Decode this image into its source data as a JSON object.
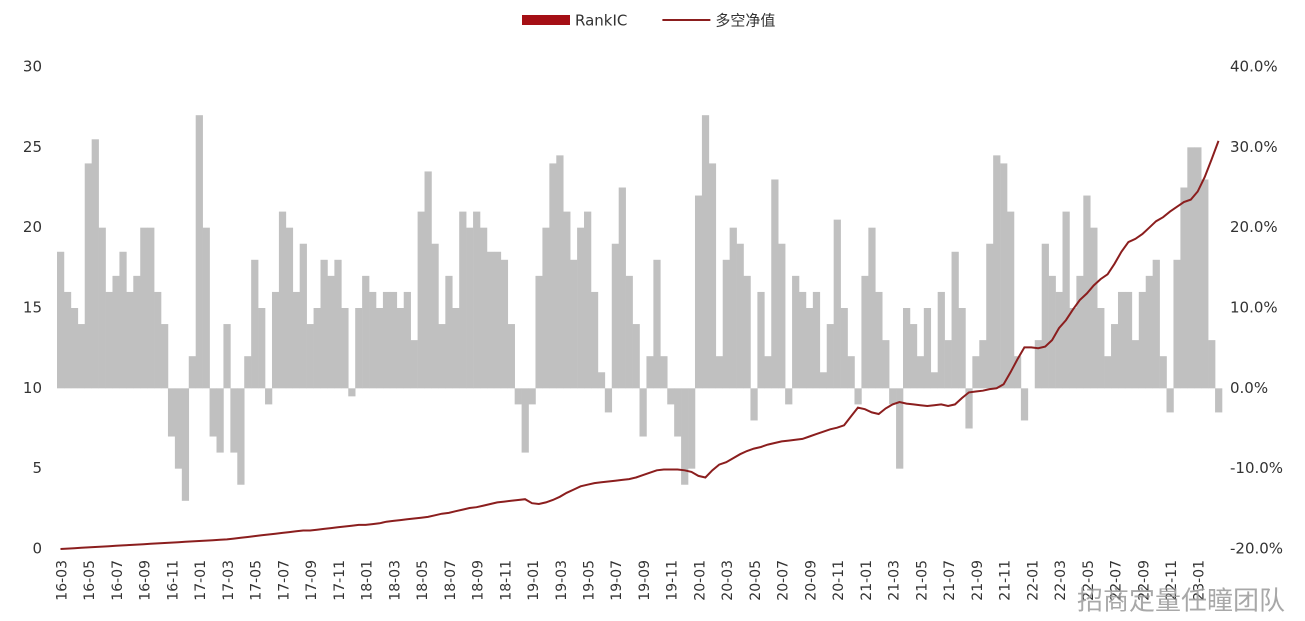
{
  "chart_data": {
    "type": "bar-line",
    "watermark": "招商定量任瞳团队",
    "categories": [
      "16-03",
      null,
      null,
      null,
      "16-05",
      null,
      null,
      null,
      "16-07",
      null,
      null,
      null,
      "16-09",
      null,
      null,
      null,
      "16-11",
      null,
      null,
      null,
      "17-01",
      null,
      null,
      null,
      "17-03",
      null,
      null,
      null,
      "17-05",
      null,
      null,
      null,
      "17-07",
      null,
      null,
      null,
      "17-09",
      null,
      null,
      null,
      "17-11",
      null,
      null,
      null,
      "18-01",
      null,
      null,
      null,
      "18-03",
      null,
      null,
      null,
      "18-05",
      null,
      null,
      null,
      "18-07",
      null,
      null,
      null,
      "18-09",
      null,
      null,
      null,
      "18-11",
      null,
      null,
      null,
      "19-01",
      null,
      null,
      null,
      "19-03",
      null,
      null,
      null,
      "19-05",
      null,
      null,
      null,
      "19-07",
      null,
      null,
      null,
      "19-09",
      null,
      null,
      null,
      "19-11",
      null,
      null,
      null,
      "20-01",
      null,
      null,
      null,
      "20-03",
      null,
      null,
      null,
      "20-05",
      null,
      null,
      null,
      "20-07",
      null,
      null,
      null,
      "20-09",
      null,
      null,
      null,
      "20-11",
      null,
      null,
      null,
      "21-01",
      null,
      null,
      null,
      "21-03",
      null,
      null,
      null,
      "21-05",
      null,
      null,
      null,
      "21-07",
      null,
      null,
      null,
      "21-09",
      null,
      null,
      null,
      "21-11",
      null,
      null,
      null,
      "22-01",
      null,
      null,
      null,
      "22-03",
      null,
      null,
      null,
      "22-05",
      null,
      null,
      null,
      "22-07",
      null,
      null,
      null,
      "22-09",
      null,
      null,
      null,
      "22-11",
      null,
      null,
      null,
      "23-01",
      null,
      null,
      null
    ],
    "series": [
      {
        "name": "RankIC",
        "type": "bar",
        "color": "#c0c0c0",
        "legend_color": "#a50f15",
        "values": [
          18.5,
          16,
          15,
          14,
          24,
          25.5,
          20,
          16,
          17,
          18.5,
          16,
          17,
          20,
          20,
          16,
          14,
          7,
          5,
          3,
          12,
          27,
          20,
          7,
          6,
          14,
          6,
          4,
          12,
          18,
          15,
          9,
          16,
          21,
          20,
          16,
          19,
          14,
          15,
          18,
          17,
          18,
          15,
          9.5,
          15,
          17,
          16,
          15,
          16,
          16,
          15,
          16,
          13,
          21,
          23.5,
          19,
          14,
          17,
          15,
          21,
          20,
          21,
          20,
          18.5,
          18.5,
          18,
          14,
          9,
          6,
          9,
          17,
          20,
          24,
          24.5,
          21,
          18,
          20,
          21,
          16,
          11,
          8.5,
          19,
          22.5,
          17,
          14,
          7,
          12,
          18,
          12,
          9,
          7,
          4,
          5,
          22,
          27,
          24,
          12,
          18,
          20,
          19,
          17,
          8,
          16,
          12,
          23,
          19,
          9,
          17,
          16,
          15,
          16,
          11,
          14,
          20.5,
          15,
          12,
          9,
          17,
          20,
          16,
          13,
          9,
          5,
          15,
          14,
          12,
          15,
          11,
          16,
          13,
          18.5,
          15,
          7.5,
          12,
          13,
          19,
          24.5,
          24,
          21,
          12,
          8,
          10,
          13,
          19,
          17,
          16,
          21,
          15,
          17,
          22,
          20,
          15,
          12,
          14,
          16,
          16,
          13,
          16,
          17,
          18,
          12,
          8.5,
          18,
          22.5,
          25,
          25,
          23,
          13,
          8.5
        ]
      },
      {
        "name": "多空净值",
        "type": "line",
        "axis": "y2",
        "color": "#8b1e1e",
        "values": [
          -20,
          -19.95,
          -19.9,
          -19.85,
          -19.8,
          -19.75,
          -19.7,
          -19.65,
          -19.6,
          -19.55,
          -19.5,
          -19.45,
          -19.4,
          -19.35,
          -19.3,
          -19.25,
          -19.2,
          -19.15,
          -19.1,
          -19.05,
          -19.0,
          -18.95,
          -18.9,
          -18.85,
          -18.8,
          -18.7,
          -18.6,
          -18.5,
          -18.4,
          -18.3,
          -18.2,
          -18.1,
          -18.0,
          -17.9,
          -17.8,
          -17.7,
          -17.7,
          -17.6,
          -17.5,
          -17.4,
          -17.3,
          -17.2,
          -17.1,
          -17.0,
          -17.0,
          -16.9,
          -16.8,
          -16.6,
          -16.5,
          -16.4,
          -16.3,
          -16.2,
          -16.1,
          -16.0,
          -15.8,
          -15.6,
          -15.5,
          -15.3,
          -15.1,
          -14.9,
          -14.8,
          -14.6,
          -14.4,
          -14.2,
          -14.1,
          -14.0,
          -13.9,
          -13.8,
          -14.3,
          -14.4,
          -14.2,
          -13.9,
          -13.5,
          -13.0,
          -12.6,
          -12.2,
          -12.0,
          -11.8,
          -11.7,
          -11.6,
          -11.5,
          -11.4,
          -11.3,
          -11.1,
          -10.8,
          -10.5,
          -10.2,
          -10.1,
          -10.1,
          -10.1,
          -10.2,
          -10.4,
          -10.9,
          -11.1,
          -10.2,
          -9.5,
          -9.2,
          -8.7,
          -8.2,
          -7.8,
          -7.5,
          -7.3,
          -7.0,
          -6.8,
          -6.6,
          -6.5,
          -6.4,
          -6.3,
          -6.0,
          -5.7,
          -5.4,
          -5.1,
          -4.9,
          -4.6,
          -3.5,
          -2.4,
          -2.6,
          -3.0,
          -3.2,
          -2.5,
          -2.0,
          -1.7,
          -1.9,
          -2.0,
          -2.1,
          -2.2,
          -2.1,
          -2.0,
          -2.2,
          -2.0,
          -1.2,
          -0.5,
          -0.4,
          -0.3,
          -0.1,
          0.0,
          0.5,
          2.0,
          3.6,
          5.1,
          5.1,
          5.0,
          5.2,
          6.0,
          7.5,
          8.5,
          9.8,
          11.0,
          11.8,
          12.8,
          13.6,
          14.2,
          15.5,
          17.0,
          18.2,
          18.6,
          19.2,
          20.0,
          20.8,
          21.3,
          22.0,
          22.6,
          23.2,
          23.5,
          24.5,
          26.3,
          28.5,
          30.8
        ]
      }
    ],
    "ylim": [
      0,
      30
    ],
    "yticks": [
      0,
      5,
      10,
      15,
      20,
      25,
      30
    ],
    "y2lim": [
      -20,
      40
    ],
    "y2ticks": [
      {
        "value": -20,
        "label": "-20.0%"
      },
      {
        "value": -10,
        "label": "-10.0%"
      },
      {
        "value": 0,
        "label": "0.0%"
      },
      {
        "value": 10,
        "label": "10.0%"
      },
      {
        "value": 20,
        "label": "20.0%"
      },
      {
        "value": 30,
        "label": "30.0%"
      },
      {
        "value": 40,
        "label": "40.0%"
      }
    ],
    "legend": "top"
  }
}
